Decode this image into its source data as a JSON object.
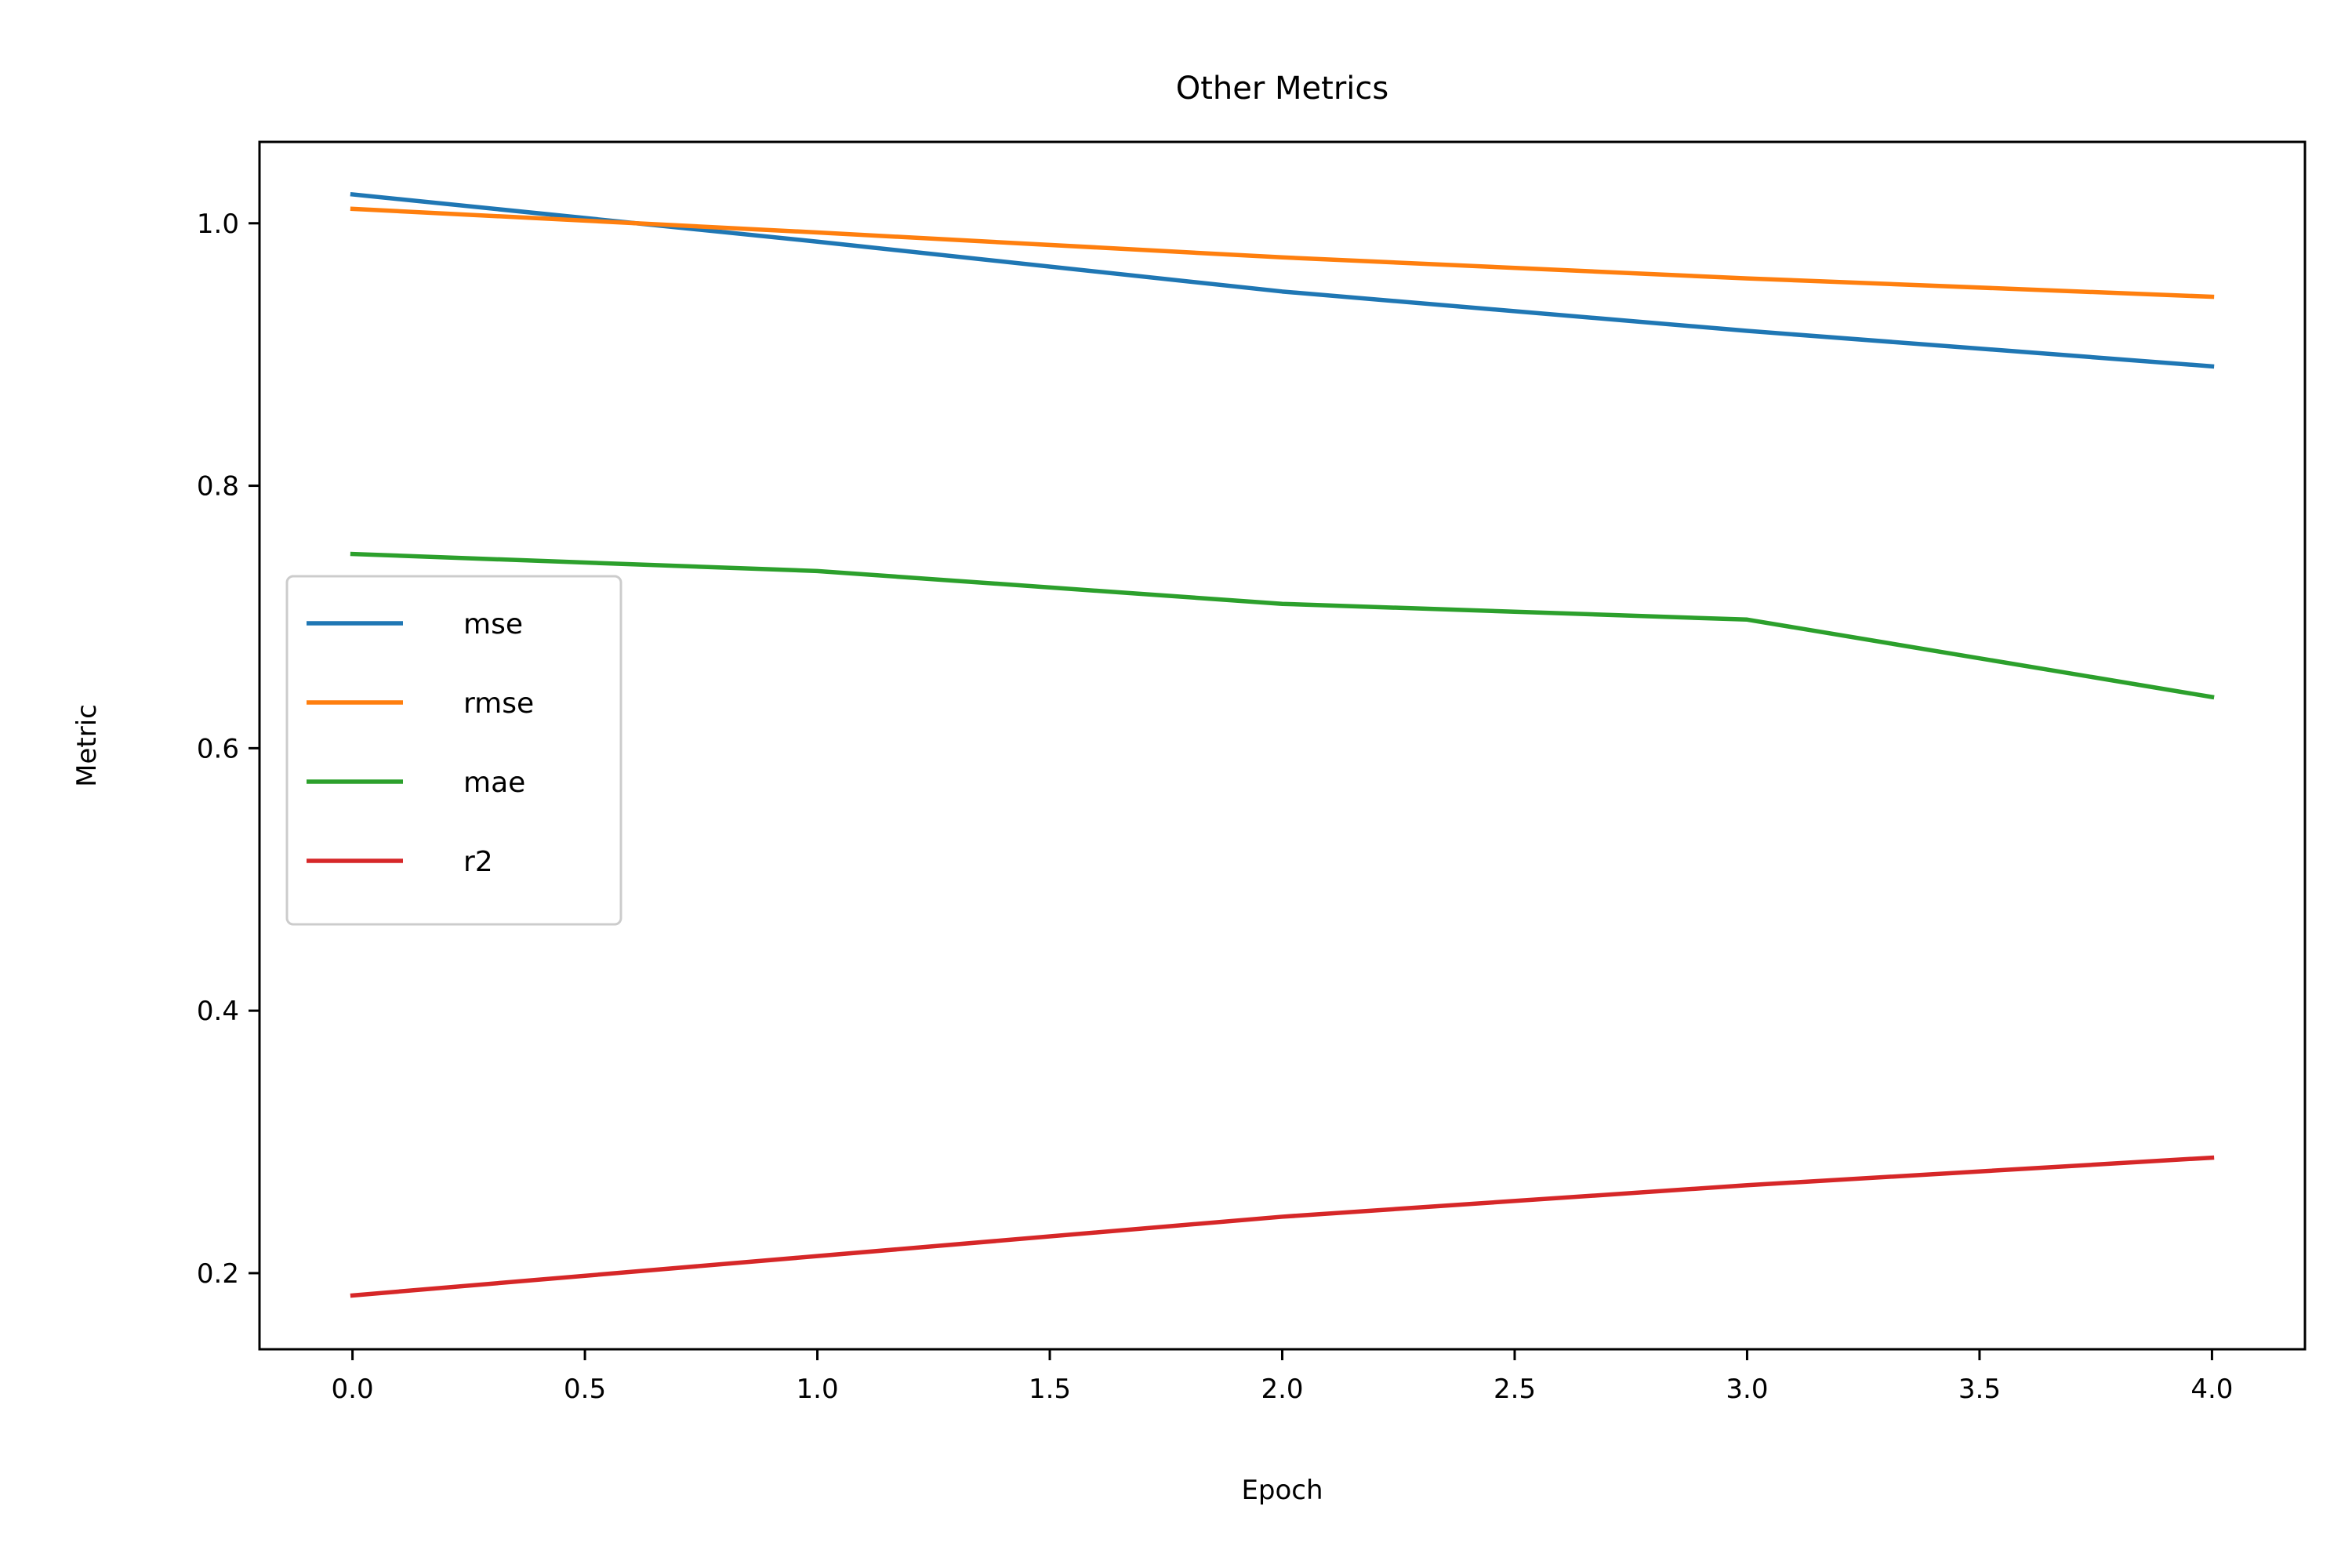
{
  "chart_data": {
    "type": "line",
    "title": "Other Metrics",
    "xlabel": "Epoch",
    "ylabel": "Metric",
    "x": [
      0,
      1,
      2,
      3,
      4
    ],
    "xlim": [
      -0.2,
      4.2
    ],
    "ylim": [
      0.142,
      1.062
    ],
    "xticks": [
      0.0,
      0.5,
      1.0,
      1.5,
      2.0,
      2.5,
      3.0,
      3.5,
      4.0
    ],
    "xtick_labels": [
      "0.0",
      "0.5",
      "1.0",
      "1.5",
      "2.0",
      "2.5",
      "3.0",
      "3.5",
      "4.0"
    ],
    "yticks": [
      0.2,
      0.4,
      0.6,
      0.8,
      1.0
    ],
    "ytick_labels": [
      "0.2",
      "0.4",
      "0.6",
      "0.8",
      "1.0"
    ],
    "grid": false,
    "legend_position": "center-left",
    "series": [
      {
        "name": "mse",
        "color": "#1f77b4",
        "values": [
          1.022,
          0.986,
          0.948,
          0.918,
          0.891
        ]
      },
      {
        "name": "rmse",
        "color": "#ff7f0e",
        "values": [
          1.011,
          0.993,
          0.974,
          0.958,
          0.944
        ]
      },
      {
        "name": "mae",
        "color": "#2ca02c",
        "values": [
          0.748,
          0.735,
          0.71,
          0.698,
          0.639
        ]
      },
      {
        "name": "r2",
        "color": "#d62728",
        "values": [
          0.183,
          0.213,
          0.243,
          0.267,
          0.288
        ]
      }
    ]
  }
}
